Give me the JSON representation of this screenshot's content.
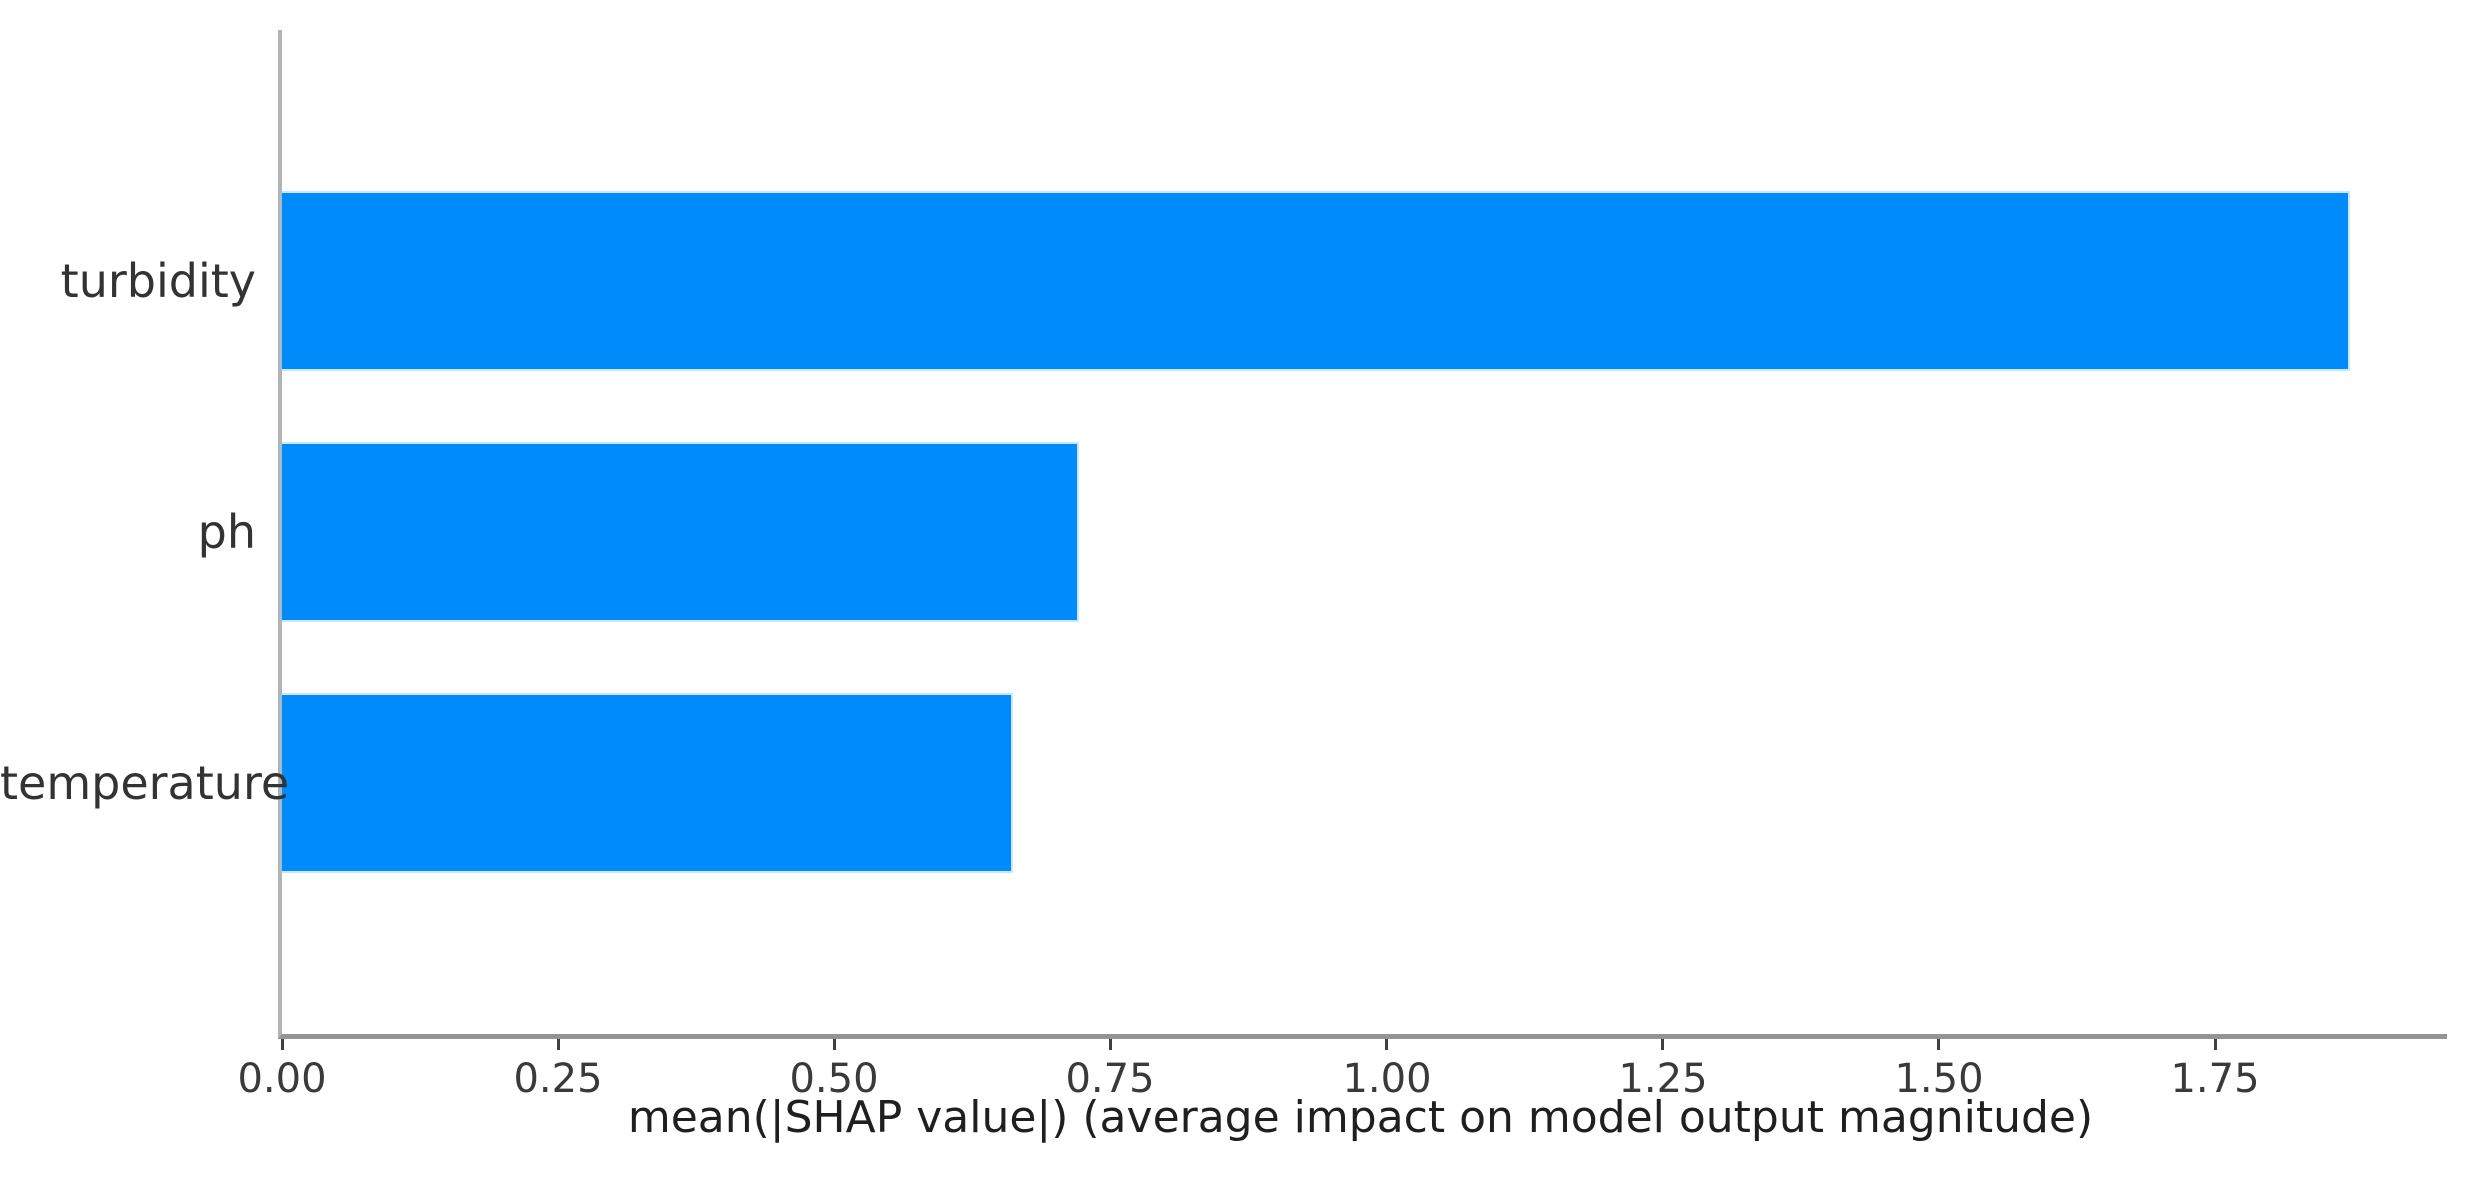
{
  "figure": {
    "background": "#ffffff"
  },
  "chart_data": {
    "type": "bar",
    "orientation": "horizontal",
    "title": "",
    "xlabel": "mean(|SHAP value|) (average impact on model output magnitude)",
    "ylabel": "",
    "categories": [
      "turbidity",
      "ph",
      "temperature"
    ],
    "values": [
      1.87,
      0.72,
      0.66
    ],
    "xlim": [
      0,
      1.96
    ],
    "x_ticks": [
      0,
      0.25,
      0.5,
      0.75,
      1.0,
      1.25,
      1.5,
      1.75
    ],
    "x_tick_labels": [
      "0.00",
      "0.25",
      "0.50",
      "0.75",
      "1.00",
      "1.25",
      "1.50",
      "1.75"
    ],
    "bar_color": "#008bfb",
    "spine_color": "#9e9e9e",
    "grid": false,
    "legend": null
  }
}
